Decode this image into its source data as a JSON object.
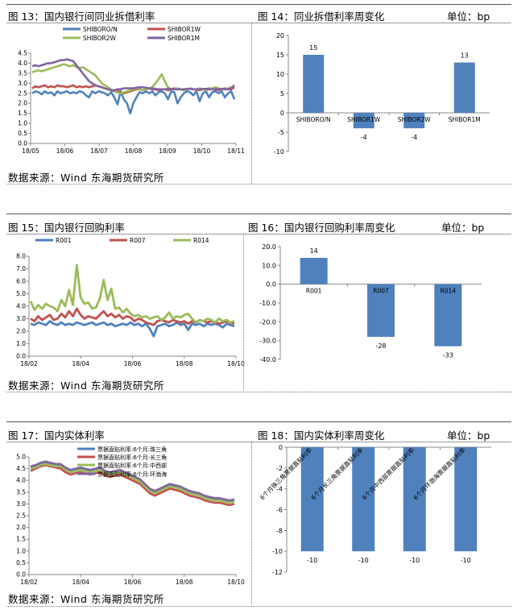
{
  "source_text": "数据来源：Wind   东海期货研究所",
  "unit_text": "单位：bp",
  "charts": [
    {
      "title": "图 13：国内银行间同业拆借利率",
      "chart_data": {
        "type": "line",
        "x_ticks": [
          "18/05",
          "18/06",
          "18/07",
          "18/08",
          "18/09",
          "18/10",
          "18/11"
        ],
        "ylim": [
          0,
          4.5
        ],
        "y_ticks": [
          "0.0",
          "0.5",
          "1.0",
          "1.5",
          "2.0",
          "2.5",
          "3.0",
          "3.5",
          "4.0",
          "4.5"
        ],
        "series": [
          {
            "name": "SHIBORO/N",
            "color": "#4f81bd",
            "values": [
              2.5,
              2.6,
              2.55,
              2.45,
              2.6,
              2.5,
              2.55,
              2.4,
              2.6,
              2.5,
              2.55,
              2.6,
              2.5,
              2.55,
              2.5,
              2.6,
              2.55,
              2.4,
              2.3,
              2.6,
              2.5,
              2.6,
              2.55,
              2.5,
              2.4,
              2.55,
              2.3,
              1.95,
              2.6,
              2.2,
              2.0,
              1.5,
              2.0,
              2.3,
              2.55,
              2.5,
              2.6,
              2.5,
              2.6,
              2.4,
              2.55,
              2.6,
              2.5,
              2.2,
              2.6,
              2.55,
              2.0,
              2.3,
              2.5,
              2.6,
              2.55,
              2.4,
              2.6,
              2.1,
              2.5,
              2.6,
              2.3,
              2.55,
              2.6,
              2.5,
              2.6,
              2.3,
              2.5,
              2.6,
              2.2
            ]
          },
          {
            "name": "SHIBOR1W",
            "color": "#c0504d",
            "values": [
              2.75,
              2.85,
              2.8,
              2.85,
              2.9,
              2.8,
              2.85,
              2.8,
              2.9,
              2.85,
              2.85,
              2.8,
              2.85,
              2.9,
              2.8,
              2.85,
              2.8,
              2.85,
              2.8,
              2.85,
              2.9,
              2.85,
              2.8,
              2.75,
              2.7,
              2.65,
              2.6,
              2.6,
              2.55,
              2.5,
              2.55,
              2.6,
              2.65,
              2.7,
              2.7,
              2.65,
              2.7,
              2.75,
              2.7,
              2.7,
              2.65,
              2.7,
              2.7,
              2.65,
              2.7,
              2.75,
              2.7,
              2.7,
              2.65,
              2.7,
              2.75,
              2.7,
              2.7,
              2.65,
              2.7,
              2.7,
              2.75,
              2.7,
              2.7,
              2.65,
              2.7,
              2.75,
              2.7,
              2.7,
              2.8
            ]
          },
          {
            "name": "SHIBOR2W",
            "color": "#9bbb59",
            "values": [
              3.55,
              3.6,
              3.65,
              3.6,
              3.65,
              3.7,
              3.75,
              3.8,
              3.85,
              3.9,
              3.95,
              3.9,
              3.85,
              3.9,
              3.8,
              3.75,
              3.8,
              3.7,
              3.6,
              3.5,
              3.4,
              3.2,
              3.0,
              2.9,
              2.8,
              2.7,
              2.6,
              2.55,
              2.5,
              2.55,
              2.6,
              2.65,
              2.7,
              2.75,
              2.7,
              2.65,
              2.7,
              2.75,
              2.8,
              3.0,
              3.2,
              3.45,
              3.1,
              2.8,
              2.7,
              2.7,
              2.75,
              2.7,
              2.65,
              2.7,
              2.75,
              2.7,
              2.7,
              2.75,
              2.7,
              2.65,
              2.7,
              2.75,
              2.8,
              2.75,
              2.7,
              2.7,
              2.75,
              2.8,
              2.85
            ]
          },
          {
            "name": "SHIBOR1M",
            "color": "#8064a2",
            "values": [
              3.85,
              3.9,
              3.85,
              3.9,
              3.95,
              4.0,
              4.0,
              4.05,
              4.1,
              4.15,
              4.15,
              4.2,
              4.15,
              4.1,
              3.9,
              3.7,
              3.5,
              3.3,
              3.1,
              3.0,
              2.9,
              2.85,
              2.8,
              2.75,
              2.7,
              2.65,
              2.65,
              2.7,
              2.7,
              2.75,
              2.75,
              2.75,
              2.75,
              2.78,
              2.8,
              2.8,
              2.78,
              2.75,
              2.75,
              2.72,
              2.7,
              2.7,
              2.7,
              2.72,
              2.72,
              2.7,
              2.7,
              2.7,
              2.7,
              2.72,
              2.72,
              2.7,
              2.7,
              2.7,
              2.72,
              2.72,
              2.7,
              2.7,
              2.7,
              2.72,
              2.72,
              2.7,
              2.7,
              2.75,
              2.9
            ]
          }
        ]
      }
    },
    {
      "title": "图 14：同业拆借利率周变化",
      "chart_data": {
        "type": "bar",
        "categories": [
          "SHIBORO/N",
          "SHIBOR1W",
          "SHIBOR2W",
          "SHIBOR1M"
        ],
        "values": [
          15,
          -4,
          -4,
          13
        ],
        "value_labels": [
          "15",
          "-4",
          "-4",
          "13"
        ],
        "ylim": [
          -10,
          20
        ],
        "y_ticks": [
          "20",
          "15",
          "10",
          "5",
          "0",
          "-5",
          "-10"
        ]
      }
    },
    {
      "title": "图 15：国内银行回购利率",
      "chart_data": {
        "type": "line",
        "x_ticks": [
          "18/02",
          "18/04",
          "18/06",
          "18/08",
          "18/10"
        ],
        "ylim": [
          0,
          8
        ],
        "y_ticks": [
          "0.0",
          "1.0",
          "2.0",
          "3.0",
          "4.0",
          "5.0",
          "6.0",
          "7.0",
          "8.0"
        ],
        "series": [
          {
            "name": "R001",
            "color": "#4f81bd",
            "values": [
              2.6,
              2.5,
              2.7,
              2.6,
              2.5,
              2.8,
              2.6,
              2.5,
              2.7,
              2.5,
              2.6,
              2.5,
              2.7,
              2.6,
              2.5,
              2.6,
              2.7,
              2.5,
              2.6,
              2.7,
              2.5,
              2.6,
              2.4,
              2.5,
              2.6,
              2.5,
              2.7,
              2.5,
              2.6,
              2.4,
              2.6,
              2.2,
              1.6,
              2.4,
              2.5,
              2.6,
              2.4,
              2.5,
              2.7,
              2.5,
              2.6,
              2.1,
              2.6,
              2.5,
              2.6,
              2.4,
              2.6,
              2.5,
              2.6,
              2.5,
              2.3,
              2.6,
              2.5,
              2.4
            ]
          },
          {
            "name": "R007",
            "color": "#c0504d",
            "values": [
              3.0,
              2.8,
              3.2,
              2.9,
              3.1,
              3.3,
              2.9,
              3.0,
              3.4,
              3.1,
              3.6,
              3.2,
              3.8,
              3.3,
              3.0,
              3.2,
              3.1,
              3.0,
              3.3,
              3.6,
              3.2,
              3.4,
              3.1,
              3.3,
              3.0,
              3.2,
              3.1,
              2.8,
              3.0,
              2.9,
              2.7,
              2.6,
              2.5,
              2.8,
              2.9,
              2.8,
              2.7,
              2.9,
              2.8,
              2.7,
              2.8,
              2.6,
              2.8,
              2.7,
              2.9,
              2.8,
              2.7,
              2.8,
              2.7,
              2.6,
              2.7,
              2.8,
              2.7,
              2.6
            ]
          },
          {
            "name": "R014",
            "color": "#9bbb59",
            "values": [
              4.4,
              3.7,
              4.1,
              3.8,
              4.2,
              4.0,
              3.9,
              3.6,
              4.5,
              4.0,
              5.3,
              4.1,
              7.3,
              4.7,
              4.2,
              4.3,
              3.8,
              3.9,
              4.6,
              6.1,
              4.5,
              5.4,
              3.8,
              3.9,
              3.5,
              3.8,
              3.4,
              3.2,
              3.3,
              3.1,
              3.2,
              3.0,
              3.1,
              3.2,
              2.9,
              3.1,
              3.5,
              3.0,
              3.2,
              3.1,
              3.3,
              3.4,
              3.0,
              2.7,
              2.9,
              2.8,
              3.0,
              2.9,
              2.7,
              3.0,
              2.8,
              2.9,
              2.7,
              2.8
            ]
          }
        ]
      }
    },
    {
      "title": "图 16：国内银行回购利率周变化",
      "chart_data": {
        "type": "bar",
        "categories": [
          "R001",
          "R007",
          "R014"
        ],
        "values": [
          14,
          -28,
          -33
        ],
        "value_labels": [
          "14",
          "-28",
          "-33"
        ],
        "ylim": [
          -40,
          20
        ],
        "y_ticks": [
          "20.0",
          "10.0",
          "0.0",
          "-10.0",
          "-20.0",
          "-30.0",
          "-40.0"
        ]
      }
    },
    {
      "title": "图 17：国内实体利率",
      "chart_data": {
        "type": "line",
        "x_ticks": [
          "18/02",
          "18/04",
          "18/06",
          "18/08",
          "18/10"
        ],
        "ylim": [
          0,
          5
        ],
        "y_ticks": [
          "0.0",
          "0.5",
          "1.0",
          "1.5",
          "2.0",
          "2.5",
          "3.0",
          "3.5",
          "4.0",
          "4.5",
          "5.0"
        ],
        "series": [
          {
            "name": "票据直贴利率:6个月:珠三角",
            "color": "#4f81bd",
            "values": [
              4.55,
              4.6,
              4.7,
              4.75,
              4.7,
              4.7,
              4.65,
              4.5,
              4.4,
              4.45,
              4.5,
              4.45,
              4.4,
              4.45,
              4.5,
              4.35,
              4.3,
              4.35,
              4.4,
              4.3,
              4.2,
              4.1,
              4.0,
              3.8,
              3.6,
              3.5,
              3.6,
              3.7,
              3.8,
              3.75,
              3.7,
              3.6,
              3.5,
              3.45,
              3.4,
              3.3,
              3.25,
              3.2,
              3.2,
              3.15,
              3.1,
              3.15
            ]
          },
          {
            "name": "票据直贴利率:6个月:长三角",
            "color": "#c0504d",
            "values": [
              4.4,
              4.5,
              4.6,
              4.65,
              4.6,
              4.55,
              4.5,
              4.35,
              4.25,
              4.3,
              4.35,
              4.3,
              4.25,
              4.3,
              4.35,
              4.2,
              4.15,
              4.2,
              4.25,
              4.15,
              4.05,
              3.95,
              3.85,
              3.65,
              3.45,
              3.35,
              3.45,
              3.55,
              3.65,
              3.6,
              3.55,
              3.45,
              3.35,
              3.3,
              3.25,
              3.15,
              3.1,
              3.05,
              3.05,
              3.0,
              2.95,
              3.0
            ]
          },
          {
            "name": "票据直贴利率:6个月:中西部",
            "color": "#9bbb59",
            "values": [
              4.5,
              4.55,
              4.65,
              4.7,
              4.65,
              4.6,
              4.6,
              4.45,
              4.35,
              4.4,
              4.45,
              4.4,
              4.35,
              4.4,
              4.45,
              4.3,
              4.25,
              4.3,
              4.35,
              4.25,
              4.15,
              4.05,
              3.95,
              3.75,
              3.55,
              3.45,
              3.55,
              3.65,
              3.75,
              3.7,
              3.65,
              3.55,
              3.45,
              3.4,
              3.35,
              3.25,
              3.2,
              3.15,
              3.15,
              3.1,
              3.05,
              3.1
            ]
          },
          {
            "name": "票据直贴利率:6个月:环渤海",
            "color": "#8064a2",
            "values": [
              4.6,
              4.65,
              4.75,
              4.8,
              4.75,
              4.7,
              4.7,
              4.55,
              4.45,
              4.5,
              4.55,
              4.5,
              4.45,
              4.5,
              4.55,
              4.4,
              4.35,
              4.4,
              4.45,
              4.35,
              4.25,
              4.15,
              4.05,
              3.85,
              3.65,
              3.55,
              3.65,
              3.75,
              3.85,
              3.8,
              3.75,
              3.65,
              3.55,
              3.5,
              3.45,
              3.35,
              3.3,
              3.25,
              3.25,
              3.2,
              3.15,
              3.2
            ]
          }
        ]
      }
    },
    {
      "title": "图 18：国内实体利率周变化",
      "chart_data": {
        "type": "bar",
        "categories": [
          "6个月珠三角票据直贴利率",
          "6个月长三角票据直贴利率",
          "6个月中西部票据直贴利率",
          "6个月环渤海票据直贴利率"
        ],
        "values": [
          -10,
          -10,
          -10,
          -10
        ],
        "value_labels": [
          "-10",
          "-10",
          "-10",
          "-10"
        ],
        "ylim": [
          -12,
          0
        ],
        "y_ticks": [
          "0",
          "-2",
          "-4",
          "-6",
          "-8",
          "-10",
          "-12"
        ]
      }
    }
  ]
}
